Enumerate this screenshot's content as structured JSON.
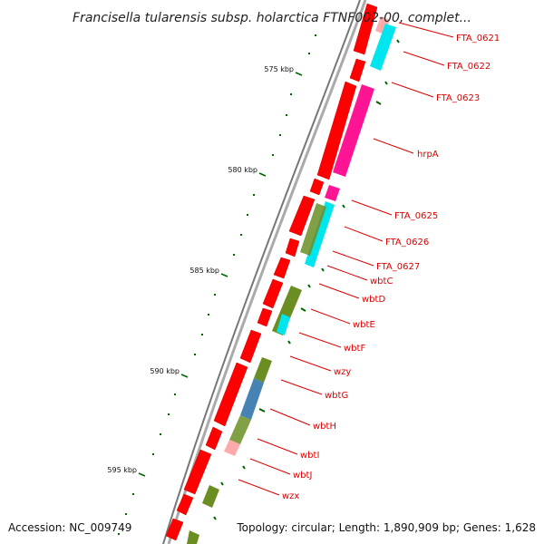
{
  "title": "Francisella tularensis subsp. holarctica FTNF002-00, complet...",
  "accession": "Accession: NC_009749",
  "topology": "Topology: circular; Length: 1,890,909 bp; Genes: 1,628",
  "ticks": [
    "575 kbp",
    "580 kbp",
    "585 kbp",
    "590 kbp",
    "595 kbp"
  ],
  "gene_labels": [
    "FTA_0621",
    "FTA_0622",
    "FTA_0623",
    "hrpA",
    "FTA_0625",
    "FTA_0626",
    "FTA_0627",
    "wbtC",
    "wbtD",
    "wbtE",
    "wbtF",
    "wzy",
    "wbtG",
    "wbtH",
    "wbtI",
    "wbtJ",
    "wzx"
  ],
  "colors": {
    "cds": "#ff0000",
    "feature_cyan": "#00e5ee",
    "feature_pink": "#ff1493",
    "feature_olive": "#6b8e23",
    "feature_blue": "#4682b4",
    "feature_lightpink": "#ffaaaa",
    "tick": "#006400",
    "backbone": "#888888",
    "label": "#dd0000"
  }
}
